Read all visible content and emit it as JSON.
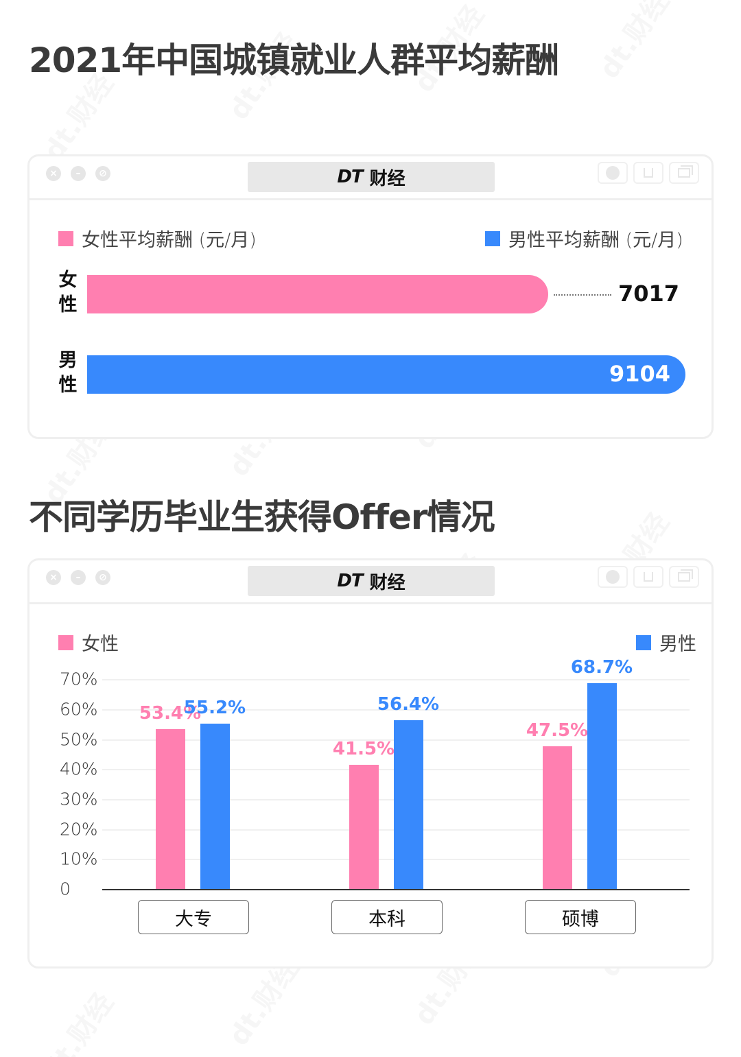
{
  "page": {
    "title_salary": "2021年中国城镇就业人群平均薪酬",
    "title_offer": "不同学历毕业生获得Offer情况",
    "watermark": "dt.财经"
  },
  "window": {
    "brand_logo": "DT",
    "brand_name": "财经",
    "controls": [
      "close-icon",
      "minimize-icon",
      "maximize-icon"
    ],
    "tools": [
      "record-icon",
      "share-icon",
      "window-icon"
    ]
  },
  "colors": {
    "female": "#ff7fb0",
    "male": "#3889fc",
    "title": "#3a3a3a",
    "window_border": "#efefef"
  },
  "chart_data": [
    {
      "type": "bar",
      "orientation": "horizontal",
      "title": "2021年中国城镇就业人群平均薪酬",
      "legend": [
        {
          "label": "女性平均薪酬 (元/月)",
          "color": "#ff7fb0"
        },
        {
          "label": "男性平均薪酬 (元/月)",
          "color": "#3889fc"
        }
      ],
      "legend_position": "top",
      "categories": [
        "女性",
        "男性"
      ],
      "category_labels_vertical": [
        [
          "女",
          "性"
        ],
        [
          "男",
          "性"
        ]
      ],
      "values": [
        7017,
        9104
      ],
      "value_labels": [
        "7017",
        "9104"
      ],
      "unit": "元/月",
      "grid": false
    },
    {
      "type": "bar",
      "orientation": "vertical",
      "title": "不同学历毕业生获得Offer情况",
      "categories": [
        "大专",
        "本科",
        "硕博"
      ],
      "series": [
        {
          "name": "女性",
          "color": "#ff7fb0",
          "values": [
            53.4,
            41.5,
            47.5
          ],
          "labels": [
            "53.4%",
            "41.5%",
            "47.5%"
          ]
        },
        {
          "name": "男性",
          "color": "#3889fc",
          "values": [
            55.2,
            56.4,
            68.7
          ],
          "labels": [
            "55.2%",
            "56.4%",
            "68.7%"
          ]
        }
      ],
      "yticks": [
        "0",
        "10%",
        "20%",
        "30%",
        "40%",
        "50%",
        "60%",
        "70%"
      ],
      "ylim": [
        0,
        70
      ],
      "xlabel": "",
      "ylabel": "",
      "grid": true,
      "legend_position": "top"
    }
  ]
}
